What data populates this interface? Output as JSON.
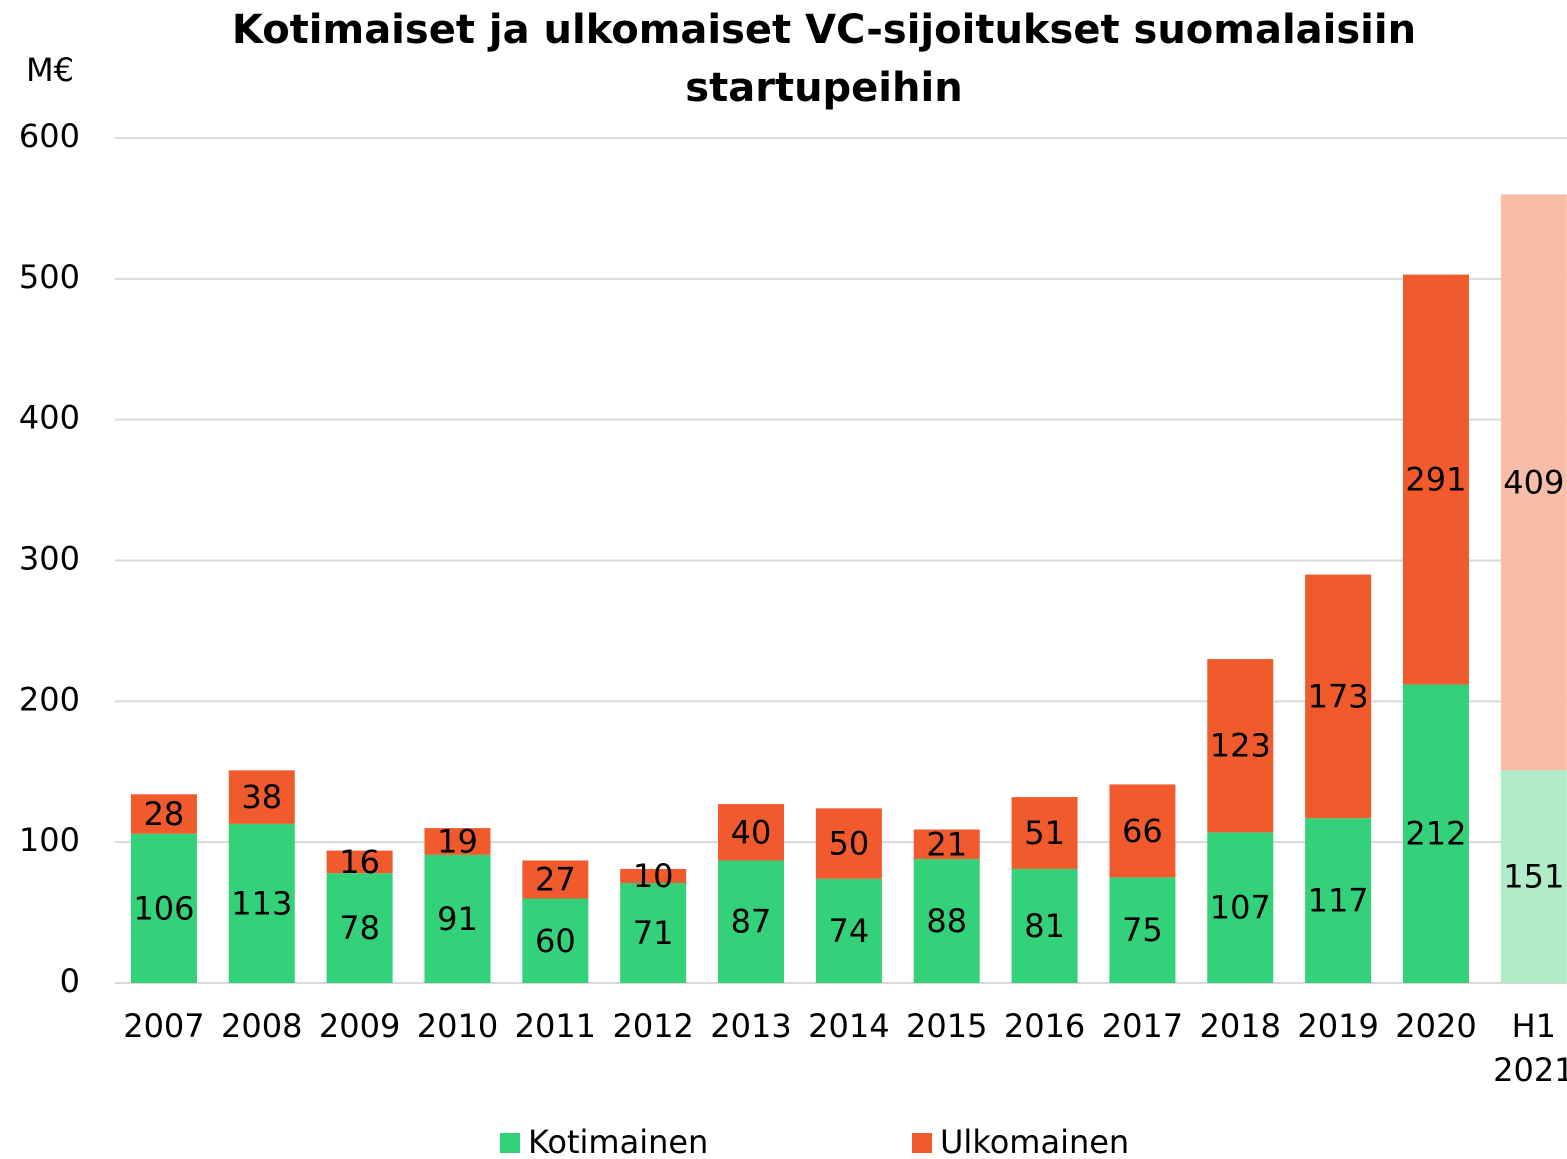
{
  "chart_data": {
    "type": "stacked_bar",
    "title": "Kotimaiset ja ulkomaiset VC-sijoitukset suomalaisiin startupeihin",
    "y_label": "M€",
    "categories": [
      "2007",
      "2008",
      "2009",
      "2010",
      "2011",
      "2012",
      "2013",
      "2014",
      "2015",
      "2016",
      "2017",
      "2018",
      "2019",
      "2020",
      "H1 2021"
    ],
    "series": [
      {
        "name": "Kotimainen",
        "color": "#33d17a",
        "colors": [
          "#33d17a",
          "#33d17a",
          "#33d17a",
          "#33d17a",
          "#33d17a",
          "#33d17a",
          "#33d17a",
          "#33d17a",
          "#33d17a",
          "#33d17a",
          "#33d17a",
          "#33d17a",
          "#33d17a",
          "#33d17a",
          "#b0ecc8"
        ],
        "values": [
          106,
          113,
          78,
          91,
          60,
          71,
          87,
          74,
          88,
          81,
          75,
          107,
          117,
          212,
          151
        ]
      },
      {
        "name": "Ulkomainen",
        "color": "#f05a2c",
        "colors": [
          "#f05a2c",
          "#f05a2c",
          "#f05a2c",
          "#f05a2c",
          "#f05a2c",
          "#f05a2c",
          "#f05a2c",
          "#f05a2c",
          "#f05a2c",
          "#f05a2c",
          "#f05a2c",
          "#f05a2c",
          "#f05a2c",
          "#f05a2c",
          "#f8bda7"
        ],
        "values": [
          28,
          38,
          16,
          19,
          27,
          10,
          40,
          50,
          21,
          51,
          66,
          123,
          173,
          291,
          409
        ]
      }
    ],
    "ylim": [
      0,
      600
    ],
    "yticks": [
      0,
      100,
      200,
      300,
      400,
      500,
      600
    ],
    "grid": true,
    "legend": "bottom"
  }
}
